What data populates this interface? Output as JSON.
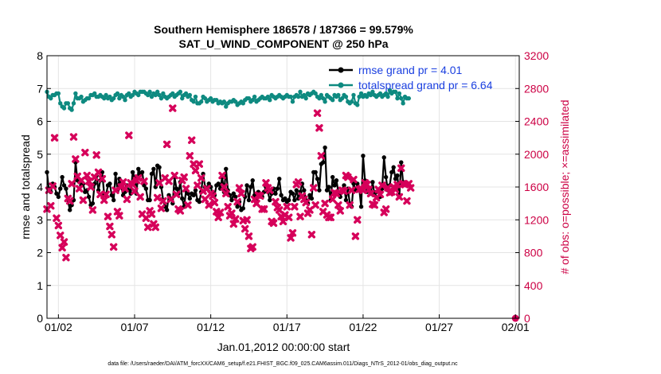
{
  "chart_data": {
    "type": "line",
    "title_line1": "Southern Hemisphere 186578 / 187366 = 99.579%",
    "title_line2": "SAT_U_WIND_COMPONENT @ 250 hPa",
    "xlabel": "Jan.01,2012 00:00:00 start",
    "ylabel_left": "rmse and totalspread",
    "ylabel_right": "# of obs: o=possible; ×=assimilated",
    "footnote": "data file: /Users/raeder/DAI/ATM_forcXX/CAM6_setup/f.e21.FHIST_BGC.f09_025.CAM6assim.011/Diags_NTrS_2012-01/obs_diag_output.nc",
    "x_range_days": [
      0.25,
      31.25
    ],
    "x_ticks": [
      {
        "label": "01/02",
        "day": 1
      },
      {
        "label": "01/07",
        "day": 6
      },
      {
        "label": "01/12",
        "day": 11
      },
      {
        "label": "01/17",
        "day": 16
      },
      {
        "label": "01/22",
        "day": 21
      },
      {
        "label": "01/27",
        "day": 26
      },
      {
        "label": "02/01",
        "day": 31
      }
    ],
    "y_left": {
      "range": [
        0,
        8
      ],
      "ticks": [
        "0",
        "1",
        "2",
        "3",
        "4",
        "5",
        "6",
        "7",
        "8"
      ]
    },
    "y_right": {
      "range": [
        0,
        3200
      ],
      "ticks": [
        "0",
        "400",
        "800",
        "1200",
        "1600",
        "2000",
        "2400",
        "2800",
        "3200"
      ]
    },
    "grid": true,
    "legend_position": "top-right",
    "colors": {
      "rmse": "#000000",
      "spread": "#0e8a80",
      "obs": "#d6005a",
      "right_axis": "#cc0044",
      "legend_text": "#1a3fe0"
    },
    "t_start_day": 0.25,
    "t_step_day": 0.125,
    "series": [
      {
        "name": "rmse grand pr = 4.01",
        "axis": "left",
        "values": [
          4.45,
          3.9,
          3.85,
          4.1,
          4.0,
          3.8,
          3.7,
          3.95,
          4.3,
          4.05,
          3.95,
          3.6,
          3.3,
          3.45,
          3.6,
          4.75,
          4.2,
          4.15,
          4.05,
          4.1,
          3.85,
          3.9,
          3.7,
          3.45,
          3.5,
          4.1,
          4.35,
          3.9,
          4.2,
          4.45,
          3.8,
          3.75,
          4.05,
          4.1,
          3.75,
          3.6,
          4.4,
          3.9,
          4.25,
          4.0,
          3.75,
          3.85,
          4.05,
          3.9,
          3.8,
          4.45,
          4.3,
          3.8,
          4.55,
          4.4,
          4.45,
          4.05,
          3.95,
          3.6,
          3.6,
          4.4,
          4.55,
          4.0,
          4.65,
          4.6,
          4.0,
          3.6,
          3.4,
          3.3,
          3.75,
          3.65,
          3.5,
          4.3,
          3.95,
          3.8,
          4.15,
          3.65,
          3.4,
          3.9,
          3.8,
          3.65,
          3.8,
          3.75,
          3.9,
          3.6,
          3.55,
          3.85,
          4.4,
          4.0,
          3.95,
          4.1,
          4.0,
          3.8,
          3.75,
          4.05,
          4.1,
          3.95,
          4.3,
          3.85,
          4.55,
          3.9,
          3.75,
          3.6,
          3.8,
          3.7,
          3.4,
          3.55,
          3.3,
          3.35,
          3.7,
          4.05,
          3.6,
          4.0,
          4.2,
          3.75,
          3.5,
          3.85,
          3.8,
          3.7,
          3.85,
          4.0,
          3.85,
          3.6,
          3.8,
          3.95,
          3.8,
          3.95,
          4.25,
          3.75,
          3.6,
          3.65,
          3.55,
          3.6,
          3.85,
          3.8,
          3.6,
          3.9,
          3.65,
          3.85,
          4.1,
          3.9,
          3.6,
          3.5,
          3.75,
          3.65,
          4.45,
          4.45,
          4.25,
          3.9,
          4.7,
          4.75,
          5.2,
          3.9,
          4.0,
          3.6,
          4.3,
          4.05,
          4.2,
          3.85,
          3.7,
          3.9,
          4.05,
          3.6,
          3.95,
          3.5,
          3.4,
          4.1,
          3.9,
          4.1,
          3.95,
          3.4,
          4.95,
          4.2,
          3.85,
          3.95,
          3.8,
          4.15,
          3.75,
          3.85,
          3.9,
          3.7,
          3.95,
          4.9,
          4.3,
          3.9,
          4.05,
          4.45,
          4.6,
          4.25,
          4.35,
          3.7,
          4.75,
          4.15
        ],
        "note": "rmse time series (k=0)"
      },
      {
        "name": "totalspread grand pr = 6.64",
        "axis": "left",
        "values": [
          6.9,
          6.75,
          6.7,
          6.8,
          6.8,
          6.85,
          6.85,
          6.55,
          6.45,
          6.4,
          6.55,
          6.55,
          6.4,
          6.35,
          6.55,
          6.85,
          6.7,
          6.7,
          6.75,
          6.6,
          6.65,
          6.7,
          6.7,
          6.8,
          6.8,
          6.85,
          6.75,
          6.75,
          6.8,
          6.75,
          6.7,
          6.8,
          6.7,
          6.75,
          6.65,
          6.7,
          6.8,
          6.85,
          6.7,
          6.8,
          6.75,
          6.65,
          6.8,
          6.85,
          6.75,
          6.8,
          6.9,
          6.85,
          6.8,
          6.9,
          6.9,
          6.9,
          6.85,
          6.8,
          6.9,
          6.75,
          6.85,
          6.8,
          6.9,
          6.8,
          6.7,
          6.85,
          6.75,
          6.7,
          6.75,
          6.8,
          6.85,
          6.75,
          6.8,
          6.85,
          6.9,
          6.7,
          6.8,
          6.85,
          6.75,
          6.8,
          6.65,
          6.6,
          6.75,
          6.55,
          6.55,
          6.6,
          6.75,
          6.7,
          6.6,
          6.65,
          6.7,
          6.6,
          6.65,
          6.65,
          6.55,
          6.6,
          6.55,
          6.6,
          6.45,
          6.55,
          6.6,
          6.6,
          6.65,
          6.6,
          6.5,
          6.55,
          6.6,
          6.55,
          6.65,
          6.7,
          6.7,
          6.6,
          6.65,
          6.75,
          6.6,
          6.65,
          6.7,
          6.75,
          6.7,
          6.7,
          6.75,
          6.65,
          6.8,
          6.75,
          6.7,
          6.75,
          6.8,
          6.75,
          6.7,
          6.75,
          6.8,
          6.75,
          6.75,
          6.6,
          6.75,
          6.8,
          6.75,
          6.9,
          6.75,
          6.8,
          6.7,
          6.85,
          6.8,
          6.85,
          6.9,
          6.85,
          6.75,
          6.7,
          6.8,
          6.7,
          6.6,
          6.8,
          6.75,
          6.7,
          6.65,
          6.8,
          6.75,
          6.8,
          6.65,
          6.7,
          6.8,
          6.75,
          6.6,
          6.55,
          6.6,
          6.8,
          6.55,
          6.5,
          6.75,
          6.85,
          6.75,
          6.8,
          6.75,
          6.85,
          6.8,
          6.9,
          6.8,
          6.75,
          6.8,
          6.85,
          6.75,
          6.8,
          6.85,
          6.75,
          6.95,
          6.85,
          6.9,
          6.9,
          6.7,
          6.85,
          6.7,
          6.55,
          6.75,
          6.7,
          6.7
        ],
        "note": "totalspread time series (k=1)"
      },
      {
        "name": "assimilated",
        "axis": "right",
        "values": [
          1330,
          1560,
          1370,
          1610,
          2200,
          1220,
          1130,
          1010,
          860,
          930,
          740,
          1460,
          1430,
          1640,
          2210,
          1940,
          1730,
          1580,
          1680,
          1440,
          2020,
          1740,
          1670,
          1600,
          1320,
          1720,
          1990,
          1780,
          1510,
          1700,
          1440,
          1510,
          1240,
          1120,
          1020,
          870,
          1560,
          1300,
          1250,
          1600,
          1660,
          1580,
          1450,
          2230,
          1650,
          1630,
          1550,
          1680,
          1710,
          1480,
          1270,
          1670,
          1220,
          1110,
          1310,
          1270,
          1150,
          1110,
          1470,
          1650,
          1340,
          1430,
          1710,
          2120,
          1670,
          1450,
          2560,
          1740,
          1510,
          1330,
          1310,
          1680,
          1720,
          1580,
          1380,
          1980,
          2170,
          1880,
          1800,
          1620,
          1880,
          1710,
          1550,
          1450,
          1580,
          1380,
          1520,
          1490,
          1410,
          1300,
          1230,
          1290,
          1740,
          1600,
          1520,
          1360,
          1250,
          1280,
          1150,
          1210,
          1420,
          1590,
          1520,
          1190,
          1090,
          1200,
          1000,
          850,
          870,
          1450,
          1400,
          1500,
          1490,
          1330,
          1330,
          1650,
          1590,
          1560,
          1180,
          1160,
          1420,
          1350,
          1320,
          1240,
          1180,
          1260,
          1360,
          1230,
          980,
          1040,
          1360,
          1630,
          1660,
          1240,
          1490,
          1450,
          1410,
          1280,
          1320,
          1020,
          1590,
          1380,
          2500,
          2320,
          1980,
          1300,
          1400,
          1260,
          1230,
          1230,
          1450,
          1530,
          1520,
          1380,
          1310,
          1560,
          1550,
          1740,
          1720,
          1380,
          1560,
          1690,
          1000,
          1200,
          1570,
          1580,
          1560,
          1650,
          1630,
          1570,
          1520,
          1390,
          1380,
          1470,
          1570,
          1510,
          1620,
          1290,
          1330,
          1590,
          1530,
          1540,
          1600,
          1570,
          1630,
          1480,
          1830,
          1640,
          1630,
          1430,
          1640,
          1590
        ],
        "note": "assimilated obs count (k=3)"
      },
      {
        "name": "possible",
        "axis": "right",
        "note": "possible obs count, shown as a single point near 02/01",
        "points": [
          {
            "day": 31.0,
            "value": 0
          }
        ]
      }
    ]
  }
}
